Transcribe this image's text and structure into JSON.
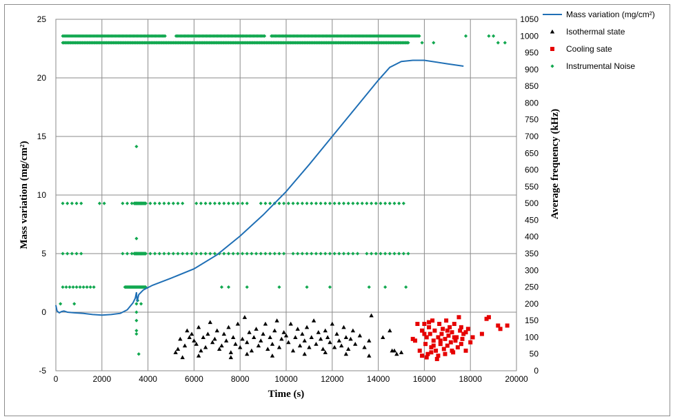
{
  "chart_data": {
    "type": "scatter",
    "title": "",
    "xlabel": "Time (s)",
    "ylabel_left": "Mass variation (mg/cm²)",
    "ylabel_right": "Average frequency (kHz)",
    "xlim": [
      0,
      20000
    ],
    "ylim_left": [
      -5,
      25
    ],
    "ylim_right": [
      0,
      1050
    ],
    "x_ticks": [
      0,
      2000,
      4000,
      6000,
      8000,
      10000,
      12000,
      14000,
      16000,
      18000,
      20000
    ],
    "y_left_ticks": [
      -5,
      0,
      5,
      10,
      15,
      20,
      25
    ],
    "y_right_ticks": [
      0,
      50,
      100,
      150,
      200,
      250,
      300,
      350,
      400,
      450,
      500,
      550,
      600,
      650,
      700,
      750,
      800,
      850,
      900,
      950,
      1000,
      1050
    ],
    "grid": "vertical and horizontal major gridlines",
    "legend_position": "top-right",
    "colors": {
      "mass": "#1f6fb5",
      "isothermal": "#000000",
      "cooling": "#e60000",
      "noise": "#12a850"
    },
    "series": [
      {
        "name": "Mass variation (mg/cm²)",
        "type": "line",
        "axis": "left",
        "points": [
          [
            0,
            0.6
          ],
          [
            50,
            0.1
          ],
          [
            150,
            -0.05
          ],
          [
            250,
            0.05
          ],
          [
            350,
            0.1
          ],
          [
            500,
            0.0
          ],
          [
            800,
            -0.05
          ],
          [
            1200,
            -0.1
          ],
          [
            1600,
            -0.2
          ],
          [
            2000,
            -0.25
          ],
          [
            2400,
            -0.2
          ],
          [
            2800,
            -0.1
          ],
          [
            3100,
            0.2
          ],
          [
            3350,
            0.8
          ],
          [
            3450,
            1.2
          ],
          [
            3500,
            1.7
          ],
          [
            3530,
            0.9
          ],
          [
            3600,
            1.5
          ],
          [
            3800,
            1.9
          ],
          [
            4200,
            2.3
          ],
          [
            5000,
            2.9
          ],
          [
            6000,
            3.7
          ],
          [
            7000,
            4.9
          ],
          [
            8000,
            6.5
          ],
          [
            9000,
            8.3
          ],
          [
            10000,
            10.3
          ],
          [
            11000,
            12.6
          ],
          [
            12000,
            15.0
          ],
          [
            13000,
            17.4
          ],
          [
            14000,
            19.8
          ],
          [
            14500,
            20.9
          ],
          [
            15000,
            21.4
          ],
          [
            15500,
            21.5
          ],
          [
            16000,
            21.5
          ],
          [
            17000,
            21.2
          ],
          [
            17700,
            21.0
          ]
        ]
      },
      {
        "name": "Isothermal state",
        "type": "scatter",
        "axis": "right",
        "points": [
          [
            5200,
            55
          ],
          [
            5300,
            65
          ],
          [
            5400,
            95
          ],
          [
            5600,
            75
          ],
          [
            5700,
            120
          ],
          [
            5800,
            100
          ],
          [
            5900,
            110
          ],
          [
            6000,
            90
          ],
          [
            6100,
            80
          ],
          [
            6200,
            130
          ],
          [
            6300,
            60
          ],
          [
            6400,
            100
          ],
          [
            6500,
            70
          ],
          [
            6600,
            110
          ],
          [
            6700,
            145
          ],
          [
            6800,
            85
          ],
          [
            6900,
            95
          ],
          [
            7000,
            120
          ],
          [
            7100,
            65
          ],
          [
            7200,
            75
          ],
          [
            7300,
            110
          ],
          [
            7400,
            90
          ],
          [
            7500,
            130
          ],
          [
            7600,
            55
          ],
          [
            7700,
            100
          ],
          [
            7800,
            80
          ],
          [
            7900,
            140
          ],
          [
            8000,
            70
          ],
          [
            8100,
            95
          ],
          [
            8200,
            160
          ],
          [
            8300,
            85
          ],
          [
            8400,
            115
          ],
          [
            8500,
            60
          ],
          [
            8600,
            100
          ],
          [
            8700,
            125
          ],
          [
            8800,
            75
          ],
          [
            8900,
            90
          ],
          [
            9000,
            110
          ],
          [
            9100,
            140
          ],
          [
            9200,
            65
          ],
          [
            9300,
            100
          ],
          [
            9400,
            80
          ],
          [
            9500,
            120
          ],
          [
            9600,
            150
          ],
          [
            9700,
            70
          ],
          [
            9800,
            95
          ],
          [
            9900,
            115
          ],
          [
            10000,
            105
          ],
          [
            10100,
            85
          ],
          [
            10200,
            140
          ],
          [
            10300,
            60
          ],
          [
            10400,
            100
          ],
          [
            10500,
            125
          ],
          [
            10600,
            75
          ],
          [
            10700,
            110
          ],
          [
            10800,
            90
          ],
          [
            10900,
            130
          ],
          [
            11000,
            70
          ],
          [
            11100,
            100
          ],
          [
            11200,
            150
          ],
          [
            11300,
            80
          ],
          [
            11400,
            115
          ],
          [
            11500,
            95
          ],
          [
            11600,
            65
          ],
          [
            11700,
            120
          ],
          [
            11800,
            100
          ],
          [
            11900,
            85
          ],
          [
            12000,
            140
          ],
          [
            12100,
            70
          ],
          [
            12200,
            110
          ],
          [
            12300,
            90
          ],
          [
            12400,
            75
          ],
          [
            12500,
            130
          ],
          [
            12600,
            100
          ],
          [
            12700,
            65
          ],
          [
            12800,
            95
          ],
          [
            12900,
            120
          ],
          [
            13000,
            80
          ],
          [
            13200,
            105
          ],
          [
            13400,
            70
          ],
          [
            13600,
            90
          ],
          [
            13700,
            165
          ],
          [
            14200,
            100
          ],
          [
            14500,
            120
          ],
          [
            14700,
            60
          ],
          [
            14800,
            50
          ],
          [
            15000,
            55
          ],
          [
            5500,
            40
          ],
          [
            6200,
            45
          ],
          [
            7600,
            40
          ],
          [
            8300,
            50
          ],
          [
            9400,
            45
          ],
          [
            10800,
            50
          ],
          [
            11700,
            55
          ],
          [
            12600,
            50
          ],
          [
            13600,
            45
          ],
          [
            14600,
            60
          ]
        ]
      },
      {
        "name": "Cooling sate",
        "type": "scatter",
        "axis": "right",
        "points": [
          [
            15600,
            90
          ],
          [
            15800,
            60
          ],
          [
            15900,
            120
          ],
          [
            16000,
            140
          ],
          [
            16050,
            80
          ],
          [
            16100,
            100
          ],
          [
            16150,
            50
          ],
          [
            16200,
            130
          ],
          [
            16250,
            110
          ],
          [
            16300,
            70
          ],
          [
            16350,
            150
          ],
          [
            16400,
            90
          ],
          [
            16450,
            120
          ],
          [
            16500,
            60
          ],
          [
            16550,
            35
          ],
          [
            16600,
            100
          ],
          [
            16650,
            140
          ],
          [
            16700,
            80
          ],
          [
            16750,
            110
          ],
          [
            16800,
            125
          ],
          [
            16850,
            65
          ],
          [
            16900,
            95
          ],
          [
            16950,
            150
          ],
          [
            17000,
            75
          ],
          [
            17050,
            105
          ],
          [
            17100,
            130
          ],
          [
            17150,
            85
          ],
          [
            17200,
            115
          ],
          [
            17250,
            55
          ],
          [
            17300,
            140
          ],
          [
            17350,
            90
          ],
          [
            17400,
            100
          ],
          [
            17450,
            70
          ],
          [
            17500,
            160
          ],
          [
            17550,
            120
          ],
          [
            17600,
            80
          ],
          [
            17650,
            95
          ],
          [
            17700,
            110
          ],
          [
            17800,
            60
          ],
          [
            17900,
            125
          ],
          [
            18000,
            85
          ],
          [
            18100,
            100
          ],
          [
            18500,
            110
          ],
          [
            18700,
            155
          ],
          [
            18800,
            160
          ],
          [
            19200,
            135
          ],
          [
            19300,
            125
          ],
          [
            19600,
            135
          ],
          [
            15900,
            45
          ],
          [
            16100,
            40
          ],
          [
            16300,
            55
          ],
          [
            16600,
            45
          ],
          [
            16900,
            50
          ],
          [
            17200,
            60
          ],
          [
            15700,
            140
          ],
          [
            16000,
            110
          ],
          [
            16400,
            75
          ],
          [
            17000,
            120
          ],
          [
            17600,
            130
          ],
          [
            15500,
            95
          ],
          [
            16200,
            145
          ],
          [
            16700,
            90
          ],
          [
            17300,
            100
          ],
          [
            17800,
            115
          ]
        ]
      },
      {
        "name": "Instrumental Noise",
        "type": "scatter",
        "axis": "right",
        "rows": [
          {
            "level": 1000,
            "x_from": 300,
            "x_to": 15800,
            "spacing": 60,
            "gaps": [
              [
                4800,
                5200
              ],
              [
                9100,
                9300
              ]
            ]
          },
          {
            "level": 980,
            "x_from": 300,
            "x_to": 15300,
            "spacing": 50,
            "gaps": []
          },
          {
            "level": 980,
            "x_from": 15900,
            "x_to": 16400,
            "spacing": 500,
            "gaps": []
          },
          {
            "level": 500,
            "x_from": 300,
            "x_to": 15200,
            "spacing": 200,
            "gaps": [
              [
                1200,
                1800
              ],
              [
                2300,
                2800
              ],
              [
                5600,
                5900
              ],
              [
                8500,
                8700
              ]
            ]
          },
          {
            "level": 500,
            "x_from": 3400,
            "x_to": 3900,
            "spacing": 20,
            "gaps": []
          },
          {
            "level": 350,
            "x_from": 300,
            "x_to": 15400,
            "spacing": 200,
            "gaps": [
              [
                1200,
                2700
              ],
              [
                10000,
                10200
              ],
              [
                13200,
                13400
              ]
            ]
          },
          {
            "level": 350,
            "x_from": 3400,
            "x_to": 3900,
            "spacing": 20,
            "gaps": []
          },
          {
            "level": 250,
            "x_from": 300,
            "x_to": 1700,
            "spacing": 150,
            "gaps": []
          },
          {
            "level": 250,
            "x_from": 3000,
            "x_to": 3900,
            "spacing": 30,
            "gaps": []
          }
        ],
        "extra_points": [
          [
            200,
            200
          ],
          [
            800,
            200
          ],
          [
            3500,
            670
          ],
          [
            3500,
            395
          ],
          [
            3500,
            200
          ],
          [
            3500,
            175
          ],
          [
            3500,
            150
          ],
          [
            3500,
            120
          ],
          [
            3500,
            110
          ],
          [
            3550,
            210
          ],
          [
            3600,
            50
          ],
          [
            3700,
            200
          ],
          [
            7200,
            250
          ],
          [
            7500,
            250
          ],
          [
            8300,
            250
          ],
          [
            9700,
            250
          ],
          [
            10900,
            250
          ],
          [
            11900,
            250
          ],
          [
            13600,
            250
          ],
          [
            14300,
            250
          ],
          [
            15200,
            250
          ],
          [
            18800,
            1000
          ],
          [
            19000,
            1000
          ],
          [
            19500,
            980
          ],
          [
            19200,
            980
          ],
          [
            17800,
            1000
          ]
        ]
      }
    ]
  }
}
